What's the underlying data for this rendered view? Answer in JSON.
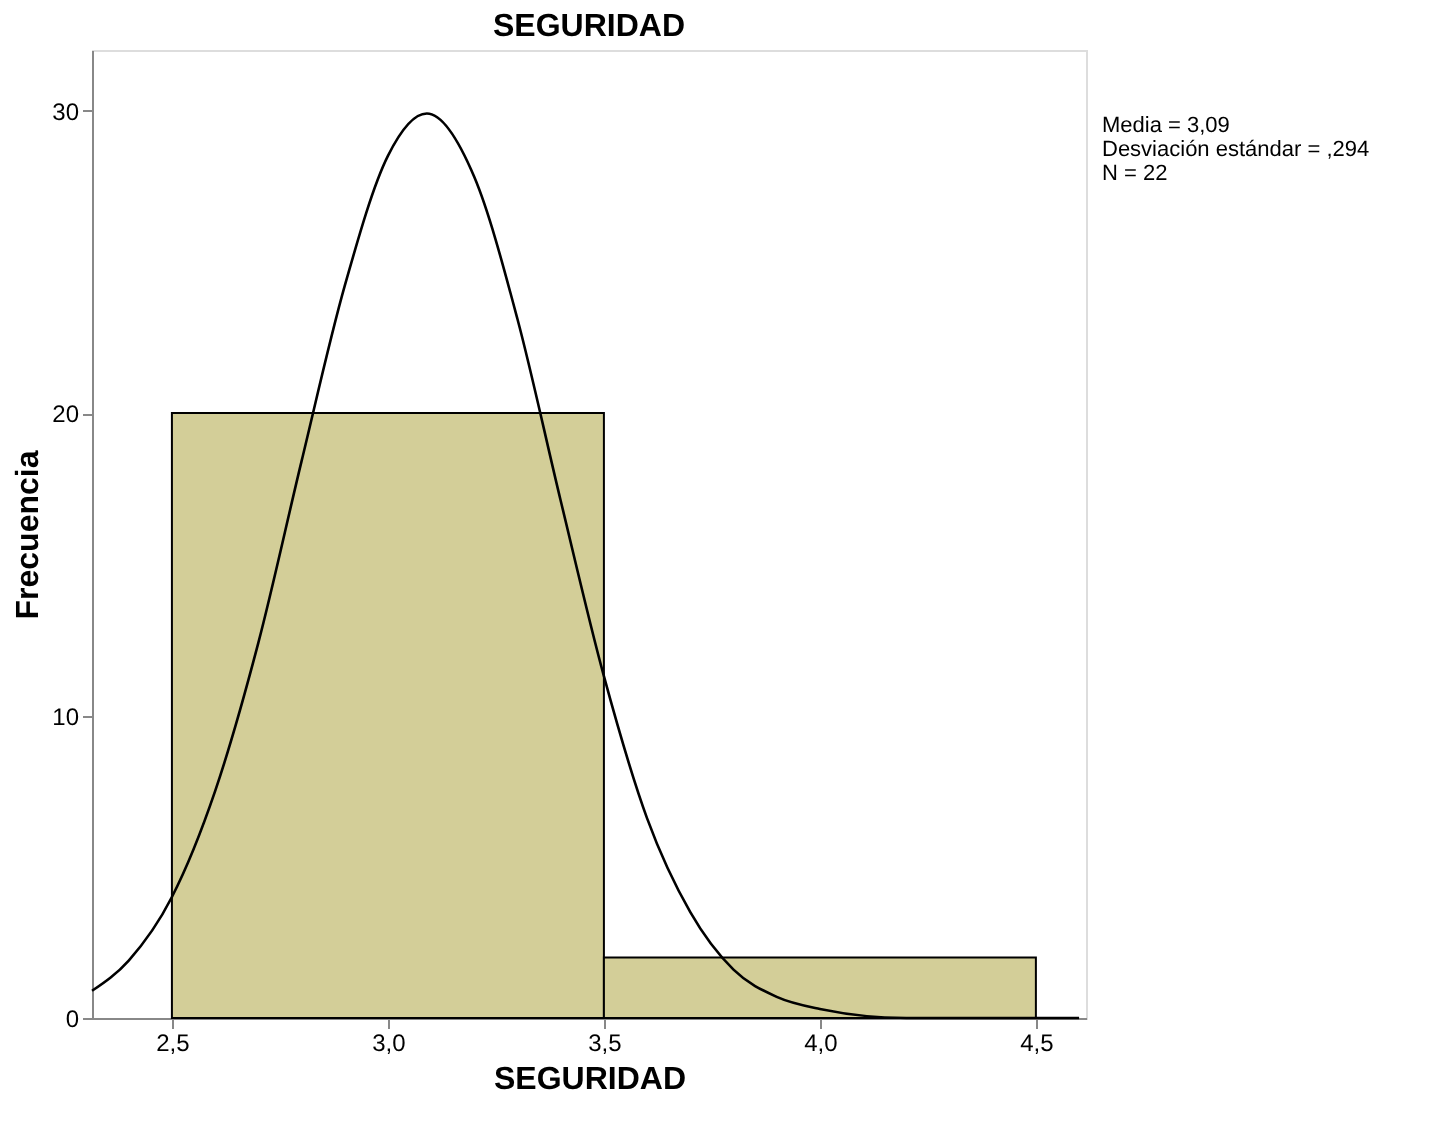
{
  "chart_data": {
    "type": "histogram",
    "title": "SEGURIDAD",
    "xlabel": "SEGURIDAD",
    "ylabel": "Frecuencia",
    "bins": [
      2.5,
      3.5,
      4.5
    ],
    "values": [
      20,
      2
    ],
    "color": "#d3ce98",
    "series": [
      {
        "type": "line",
        "color": "#000000",
        "x": [
          2.315,
          2.4,
          2.5,
          2.6,
          2.7,
          2.8,
          2.9,
          3.0,
          3.09,
          3.2,
          3.3,
          3.4,
          3.5,
          3.6,
          3.7,
          3.8,
          3.9,
          4.0,
          4.2,
          4.4,
          4.6
        ],
        "values": [
          0.9,
          1.9,
          4.0,
          7.5,
          12.4,
          18.4,
          24.2,
          28.5,
          29.9,
          27.8,
          23.1,
          17.1,
          11.3,
          6.6,
          3.5,
          1.6,
          0.7,
          0.3,
          0.0,
          0.0,
          0.0
        ]
      }
    ],
    "xlim": [
      2.315,
      4.616
    ],
    "xticks": [
      {
        "value": 2.5,
        "label": "2,5"
      },
      {
        "value": 3.0,
        "label": "3,0"
      },
      {
        "value": 3.5,
        "label": "3,5"
      },
      {
        "value": 4.0,
        "label": "4,0"
      },
      {
        "value": 4.5,
        "label": "4,5"
      }
    ],
    "ylim": [
      0,
      32
    ],
    "yticks": [
      0,
      10,
      20,
      30
    ],
    "grid": false,
    "annotations": [
      "Media = 3,09",
      "Desviación estándar = ,294",
      "N = 22"
    ]
  }
}
